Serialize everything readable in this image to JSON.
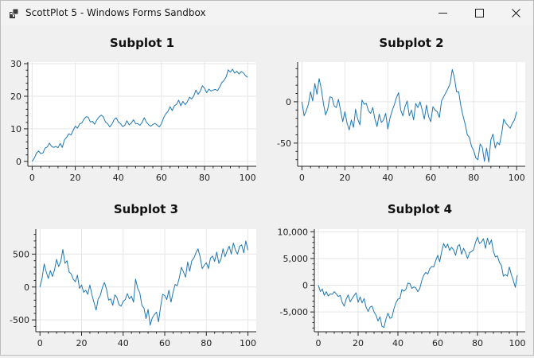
{
  "window": {
    "title": "ScottPlot 5 - Windows Forms Sandbox",
    "icons": {
      "app": "app-grid-icon",
      "minimize": "minimize-icon",
      "maximize": "maximize-icon",
      "close": "close-icon"
    }
  },
  "colors": {
    "line": "#1f77b4",
    "grid": "#e6e6e6",
    "axis": "#222222",
    "data_bg": "#ffffff"
  },
  "chart_data": [
    {
      "type": "line",
      "title": "Subplot 1",
      "xlim": [
        -2,
        104
      ],
      "ylim": [
        -1.5,
        30.5
      ],
      "xticks": [
        0,
        20,
        40,
        60,
        80,
        100
      ],
      "xtick_labels": [
        "0",
        "20",
        "40",
        "60",
        "80",
        "100"
      ],
      "yticks": [
        0,
        10,
        20,
        30
      ],
      "ytick_labels": [
        "0",
        "10",
        "20",
        "30"
      ],
      "grid": true,
      "series": [
        {
          "values": [
            0,
            1,
            2.5,
            3.2,
            2.4,
            2.6,
            4.1,
            4.4,
            5.6,
            4.6,
            4.3,
            4.6,
            4.2,
            5.5,
            4.3,
            6.6,
            7.4,
            8.5,
            8.1,
            9.5,
            10.8,
            10.2,
            11.5,
            11.8,
            12.9,
            13.7,
            13.6,
            12.1,
            12.3,
            11.4,
            12.7,
            13.6,
            14.2,
            13.7,
            12.1,
            11.6,
            10.6,
            11.4,
            12.8,
            13.4,
            12.1,
            11.6,
            10.7,
            11.1,
            12.5,
            11.2,
            11.8,
            12.8,
            11.6,
            11.6,
            11.1,
            11.9,
            13.4,
            12.1,
            11.3,
            10.8,
            11.3,
            11.7,
            11.1,
            10.6,
            11.6,
            13.4,
            14.6,
            15.3,
            16.8,
            15.6,
            17.1,
            17.5,
            18.8,
            17.1,
            18.4,
            17.4,
            18.3,
            19.7,
            19.2,
            20.1,
            21.9,
            20.6,
            21.5,
            23.2,
            22.5,
            21.1,
            22.2,
            21.6,
            21.9,
            22.1,
            21.7,
            22.8,
            24.2,
            24.8,
            25.9,
            28.1,
            27.4,
            28.3,
            27.1,
            27.7,
            26.8,
            27.6,
            27.2,
            26.3,
            25.8
          ]
        }
      ]
    },
    {
      "type": "line",
      "title": "Subplot 2",
      "xlim": [
        -2,
        104
      ],
      "ylim": [
        -78,
        48
      ],
      "xticks": [
        0,
        20,
        40,
        60,
        80,
        100
      ],
      "xtick_labels": [
        "0",
        "20",
        "40",
        "60",
        "80",
        "100"
      ],
      "yticks": [
        0,
        -50
      ],
      "ytick_labels": [
        "0",
        "-50"
      ],
      "grid": true,
      "series": [
        {
          "values": [
            0,
            -17,
            -11,
            -3,
            12,
            1,
            22,
            9,
            28,
            16,
            -2,
            -16,
            -9,
            6,
            5,
            -5,
            -7,
            3,
            -11,
            -24,
            -12,
            -26,
            -34,
            -22,
            -31,
            -9,
            -21,
            -28,
            2,
            -3,
            -2,
            -11,
            -14,
            -7,
            -21,
            -30,
            -15,
            -25,
            -22,
            -14,
            -33,
            -20,
            -11,
            -4,
            5,
            11,
            -10,
            -17,
            -6,
            1,
            -17,
            -10,
            -22,
            -2,
            -7,
            0,
            -10,
            -21,
            -4,
            -18,
            -24,
            -6,
            -10,
            -12,
            -19,
            1,
            6,
            11,
            16,
            22,
            39,
            29,
            12,
            12,
            -5,
            -17,
            -27,
            -40,
            -43,
            -54,
            -59,
            -68,
            -70,
            -51,
            -55,
            -72,
            -56,
            -73,
            -46,
            -39,
            -56,
            -49,
            -52,
            -39,
            -21,
            -26,
            -29,
            -32,
            -26,
            -22,
            -12
          ]
        }
      ]
    },
    {
      "type": "line",
      "title": "Subplot 3",
      "xlim": [
        -2,
        104
      ],
      "ylim": [
        -680,
        880
      ],
      "xticks": [
        0,
        20,
        40,
        60,
        80,
        100
      ],
      "xtick_labels": [
        "0",
        "20",
        "40",
        "60",
        "80",
        "100"
      ],
      "yticks": [
        500,
        0,
        -500
      ],
      "ytick_labels": [
        "500",
        "0",
        "-500"
      ],
      "grid": true,
      "series": [
        {
          "values": [
            0,
            130,
            350,
            230,
            130,
            250,
            160,
            260,
            420,
            310,
            390,
            570,
            360,
            400,
            230,
            200,
            120,
            80,
            180,
            -20,
            30,
            -80,
            -50,
            -110,
            30,
            -120,
            -240,
            -350,
            -180,
            -130,
            -10,
            70,
            -30,
            -200,
            -180,
            -280,
            -120,
            -160,
            -270,
            -290,
            -220,
            -190,
            -100,
            -180,
            -140,
            -230,
            120,
            -20,
            -90,
            -280,
            -320,
            -480,
            -340,
            -580,
            -470,
            -420,
            -380,
            -530,
            -300,
            -110,
            -130,
            -190,
            -50,
            -230,
            -80,
            40,
            20,
            140,
            300,
            230,
            150,
            380,
            240,
            400,
            440,
            520,
            580,
            460,
            280,
            330,
            370,
            280,
            440,
            470,
            390,
            530,
            360,
            420,
            580,
            460,
            550,
            620,
            500,
            670,
            560,
            500,
            620,
            640,
            520,
            700,
            560
          ]
        }
      ]
    },
    {
      "type": "line",
      "title": "Subplot 4",
      "xlim": [
        -2,
        104
      ],
      "ylim": [
        -8700,
        10500
      ],
      "xticks": [
        0,
        20,
        40,
        60,
        80,
        100
      ],
      "xtick_labels": [
        "0",
        "20",
        "40",
        "60",
        "80",
        "100"
      ],
      "yticks": [
        10000,
        5000,
        0,
        -5000
      ],
      "ytick_labels": [
        "10,000",
        "5,000",
        "0",
        "-5,000"
      ],
      "grid": true,
      "series": [
        {
          "values": [
            0,
            -1200,
            -700,
            -1900,
            -1200,
            -2000,
            -1600,
            -1700,
            -1200,
            -1600,
            -2100,
            -1900,
            -3200,
            -3900,
            -2600,
            -1800,
            -3100,
            -2500,
            -1900,
            -1400,
            -3200,
            -2200,
            -3300,
            -2500,
            -4100,
            -4900,
            -4100,
            -3900,
            -5000,
            -5600,
            -6700,
            -5900,
            -7700,
            -7900,
            -6300,
            -5200,
            -6200,
            -6000,
            -4400,
            -3300,
            -2600,
            -2500,
            -800,
            -1100,
            -800,
            400,
            300,
            -600,
            -300,
            -500,
            -1200,
            -600,
            900,
            1900,
            2400,
            2100,
            3100,
            3500,
            3400,
            4600,
            5600,
            4400,
            6300,
            7800,
            7000,
            7700,
            6500,
            7100,
            6600,
            5600,
            7300,
            7600,
            5800,
            6900,
            6100,
            5000,
            6100,
            6300,
            6600,
            8000,
            9000,
            7800,
            8100,
            8700,
            6900,
            8800,
            7600,
            8500,
            6300,
            5300,
            5500,
            4300,
            3700,
            1700,
            2000,
            1700,
            3400,
            2000,
            900,
            -400,
            1900
          ]
        }
      ]
    }
  ]
}
